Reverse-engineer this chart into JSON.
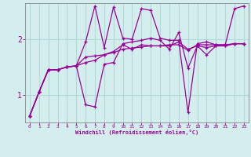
{
  "xlabel": "Windchill (Refroidissement éolien,°C)",
  "background_color": "#d4eeee",
  "line_color": "#990099",
  "grid_color": "#b0dada",
  "xlim": [
    -0.5,
    23.5
  ],
  "ylim": [
    0.5,
    2.65
  ],
  "xticks": [
    0,
    1,
    2,
    3,
    4,
    5,
    6,
    7,
    8,
    9,
    10,
    11,
    12,
    13,
    14,
    15,
    16,
    17,
    18,
    19,
    20,
    21,
    22,
    23
  ],
  "yticks": [
    1,
    2
  ],
  "series": [
    [
      0.62,
      1.05,
      1.45,
      1.45,
      1.5,
      1.52,
      1.68,
      1.7,
      1.72,
      1.76,
      1.82,
      1.84,
      1.86,
      1.88,
      1.88,
      1.9,
      1.9,
      1.8,
      1.9,
      1.9,
      1.9,
      1.9,
      1.92,
      1.92
    ],
    [
      0.62,
      1.05,
      1.45,
      1.45,
      1.5,
      1.52,
      1.95,
      2.6,
      1.85,
      2.58,
      2.02,
      2.0,
      2.55,
      2.52,
      2.02,
      1.98,
      1.98,
      0.68,
      1.92,
      1.95,
      1.9,
      1.9,
      2.55,
      2.6
    ],
    [
      0.62,
      1.05,
      1.45,
      1.45,
      1.5,
      1.52,
      0.82,
      0.78,
      1.55,
      1.58,
      1.92,
      1.95,
      1.98,
      2.02,
      1.98,
      1.82,
      2.12,
      1.48,
      1.88,
      1.72,
      1.88,
      1.88,
      1.92,
      1.92
    ],
    [
      0.62,
      1.05,
      1.45,
      1.45,
      1.5,
      1.52,
      1.58,
      1.62,
      1.72,
      1.78,
      1.9,
      1.82,
      1.9,
      1.88,
      1.88,
      1.88,
      1.95,
      1.82,
      1.88,
      1.85,
      1.88,
      1.88,
      1.92,
      1.92
    ]
  ]
}
